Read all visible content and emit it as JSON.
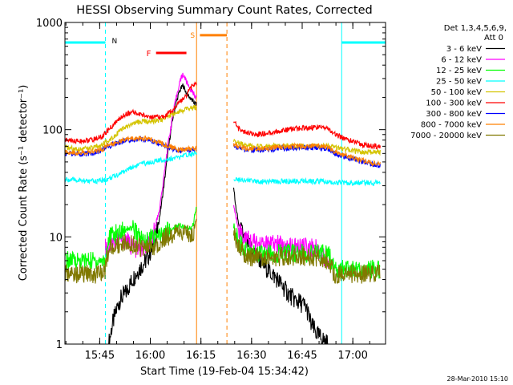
{
  "chart_data": {
    "type": "line",
    "title": "HESSI Observing Summary Count Rates, Corrected",
    "xlabel": "Start Time (19-Feb-04 15:34:42)",
    "ylabel": "Corrected Count Rate (s⁻¹ detector⁻¹)",
    "footer_timestamp": "28-Mar-2010 15:10",
    "yscale": "log",
    "ylim": [
      1,
      1000
    ],
    "y_ticks": [
      1,
      10,
      100,
      1000
    ],
    "y_tick_labels": [
      "1",
      "10",
      "100",
      "1000"
    ],
    "x_unit": "minutes since 15:34:42",
    "xlim": [
      0,
      95
    ],
    "x_ticks": [
      10.3,
      25.3,
      40.3,
      55.3,
      70.3,
      85.3
    ],
    "x_tick_labels": [
      "15:45",
      "16:00",
      "16:15",
      "16:30",
      "16:45",
      "17:00"
    ],
    "legend": {
      "position": "top-right",
      "header": [
        "Det 1,3,4,5,6,9,",
        "Att 0"
      ]
    },
    "colors": {
      "3 - 6 keV": "#000000",
      "6 - 12 keV": "#ff00ff",
      "12 - 25 keV": "#00ff00",
      "25 - 50 keV": "#00ffff",
      "50 - 100 keV": "#d4c400",
      "100 - 300 keV": "#ff0000",
      "300 - 800 keV": "#0000ff",
      "800 - 7000 keV": "#ff8000",
      "7000 - 20000 keV": "#807800"
    },
    "series": [
      {
        "name": "3 - 6 keV",
        "color": "#000000",
        "segments": [
          {
            "x": [
              13.0,
              14.0,
              16.0,
              18.0,
              20.0,
              22.0,
              24.0,
              26.0,
              27.0,
              28.0,
              29.0,
              30.0,
              31.0,
              32.0,
              33.0,
              34.0,
              35.0,
              36.0,
              37.5,
              39.0
            ],
            "y": [
              1.0,
              1.5,
              2.5,
              3.0,
              4.0,
              5.0,
              6.0,
              8.0,
              10.0,
              15.0,
              25.0,
              45.0,
              80.0,
              130.0,
              180.0,
              230.0,
              260.0,
              220.0,
              190.0,
              170.0
            ]
          },
          {
            "x": [
              50.0,
              50.5,
              51.5,
              53.0,
              55.0,
              57.0,
              60.0,
              63.0,
              66.0,
              68.0,
              70.0,
              71.5,
              73.0,
              75.0,
              78.0
            ],
            "y": [
              30.0,
              20.0,
              13.0,
              10.0,
              8.0,
              6.5,
              5.0,
              4.0,
              3.0,
              2.6,
              2.4,
              2.2,
              1.5,
              1.2,
              1.0
            ]
          }
        ]
      },
      {
        "name": "6 - 12 keV",
        "color": "#ff00ff",
        "segments": [
          {
            "x": [
              12.0,
              13.0,
              14.0,
              16.0,
              18.0,
              20.0,
              22.0,
              24.0,
              26.0,
              28.0,
              29.0,
              30.0,
              31.0,
              32.0,
              33.0,
              34.0,
              35.0,
              36.0,
              37.5,
              39.0
            ],
            "y": [
              8.0,
              8.0,
              9.0,
              9.5,
              9.5,
              8.0,
              7.5,
              8.0,
              10.0,
              18.0,
              30.0,
              55.0,
              90.0,
              140.0,
              200.0,
              280.0,
              330.0,
              280.0,
              230.0,
              200.0
            ]
          },
          {
            "x": [
              50.0,
              50.5,
              51.5,
              53.0,
              55.0,
              58.0,
              60.0,
              63.0,
              66.0,
              70.0,
              74.0,
              76.0,
              78.0
            ],
            "y": [
              20.0,
              16.0,
              12.0,
              10.0,
              9.0,
              8.5,
              8.5,
              8.5,
              8.0,
              8.0,
              8.0,
              7.0,
              6.0
            ]
          }
        ]
      },
      {
        "name": "12 - 25 keV",
        "color": "#00ff00",
        "segments": [
          {
            "x": [
              0.0,
              4.0,
              8.0,
              11.0,
              12.0,
              13.0,
              16.0,
              18.0,
              20.0,
              22.0,
              24.0,
              26.0,
              28.0,
              30.0,
              32.0,
              34.0,
              36.0,
              37.0,
              38.0,
              39.0
            ],
            "y": [
              6.0,
              6.0,
              6.0,
              6.0,
              6.0,
              10.0,
              11.0,
              12.0,
              12.0,
              10.0,
              9.0,
              10.0,
              10.0,
              11.0,
              12.0,
              13.0,
              12.0,
              12.0,
              13.0,
              20.0
            ]
          },
          {
            "x": [
              50.0,
              51.0,
              53.0,
              55.0,
              58.0,
              62.0,
              66.0,
              70.0,
              74.0,
              76.0,
              78.0,
              80.0,
              82.0,
              85.0,
              88.0,
              90.0,
              92.0,
              93.5
            ],
            "y": [
              12.0,
              10.0,
              8.0,
              7.0,
              7.0,
              7.0,
              7.0,
              7.0,
              7.0,
              7.0,
              7.0,
              5.0,
              5.0,
              5.0,
              5.0,
              5.0,
              5.0,
              5.0
            ]
          }
        ]
      },
      {
        "name": "25 - 50 keV",
        "color": "#00ffff",
        "segments": [
          {
            "x": [
              0.0,
              3.0,
              6.0,
              9.0,
              12.0,
              14.0,
              17.0,
              20.0,
              23.0,
              26.0,
              29.0,
              32.0,
              34.0,
              36.0,
              38.0,
              39.0
            ],
            "y": [
              34.0,
              34.0,
              33.0,
              33.0,
              34.0,
              36.0,
              40.0,
              45.0,
              48.0,
              50.0,
              52.0,
              54.0,
              55.0,
              58.0,
              60.0,
              62.0
            ]
          },
          {
            "x": [
              50.0,
              53.0,
              56.0,
              60.0,
              64.0,
              68.0,
              72.0,
              76.0,
              80.0,
              84.0,
              88.0,
              92.0,
              93.5
            ],
            "y": [
              35.0,
              34.0,
              33.0,
              33.0,
              33.0,
              33.0,
              33.0,
              33.0,
              32.0,
              32.0,
              32.0,
              32.0,
              32.0
            ]
          }
        ]
      },
      {
        "name": "50 - 100 keV",
        "color": "#d4c400",
        "segments": [
          {
            "x": [
              0.0,
              4.0,
              8.0,
              11.0,
              13.0,
              16.0,
              18.0,
              20.0,
              22.0,
              25.0,
              28.0,
              30.0,
              32.0,
              34.0,
              36.0,
              38.0,
              39.0
            ],
            "y": [
              68.0,
              66.0,
              67.0,
              72.0,
              80.0,
              95.0,
              105.0,
              112.0,
              118.0,
              120.0,
              122.0,
              130.0,
              140.0,
              150.0,
              155.0,
              160.0,
              160.0
            ]
          },
          {
            "x": [
              50.0,
              53.0,
              56.0,
              60.0,
              64.0,
              68.0,
              72.0,
              76.0,
              78.0,
              80.0,
              84.0,
              88.0,
              92.0,
              93.5
            ],
            "y": [
              78.0,
              72.0,
              70.0,
              70.0,
              70.0,
              70.0,
              70.0,
              70.0,
              70.0,
              68.0,
              65.0,
              62.0,
              62.0,
              62.0
            ]
          }
        ]
      },
      {
        "name": "100 - 300 keV",
        "color": "#ff0000",
        "segments": [
          {
            "x": [
              0.0,
              4.0,
              8.0,
              11.0,
              13.0,
              16.0,
              18.0,
              20.0,
              22.0,
              24.0,
              26.0,
              28.0,
              30.0,
              32.0,
              34.0,
              36.0,
              37.0,
              38.0,
              39.0
            ],
            "y": [
              80.0,
              78.0,
              80.0,
              86.0,
              100.0,
              125.0,
              140.0,
              145.0,
              140.0,
              135.0,
              130.0,
              130.0,
              135.0,
              155.0,
              180.0,
              210.0,
              240.0,
              260.0,
              270.0
            ]
          },
          {
            "x": [
              50.0,
              51.0,
              53.0,
              56.0,
              60.0,
              64.0,
              68.0,
              72.0,
              76.0,
              78.0,
              80.0,
              84.0,
              88.0,
              92.0,
              93.5
            ],
            "y": [
              125.0,
              105.0,
              95.0,
              90.0,
              92.0,
              98.0,
              102.0,
              104.0,
              106.0,
              102.0,
              90.0,
              80.0,
              72.0,
              70.0,
              70.0
            ]
          }
        ]
      },
      {
        "name": "300 - 800 keV",
        "color": "#0000ff",
        "segments": [
          {
            "x": [
              0.0,
              4.0,
              8.0,
              11.0,
              13.0,
              16.0,
              19.0,
              22.0,
              25.0,
              28.0,
              31.0,
              34.0,
              36.0,
              38.0,
              39.0
            ],
            "y": [
              60.0,
              59.0,
              60.0,
              64.0,
              70.0,
              76.0,
              80.0,
              82.0,
              80.0,
              74.0,
              68.0,
              63.0,
              64.0,
              65.0,
              65.0
            ]
          },
          {
            "x": [
              50.0,
              53.0,
              56.0,
              60.0,
              64.0,
              68.0,
              72.0,
              76.0,
              78.0,
              80.0,
              84.0,
              88.0,
              92.0,
              93.5
            ],
            "y": [
              70.0,
              66.0,
              64.0,
              65.0,
              67.0,
              68.0,
              68.0,
              68.0,
              66.0,
              60.0,
              55.0,
              50.0,
              47.0,
              46.0
            ]
          }
        ]
      },
      {
        "name": "800 - 7000 keV",
        "color": "#ff8000",
        "segments": [
          {
            "x": [
              0.0,
              4.0,
              8.0,
              11.0,
              13.0,
              16.0,
              19.0,
              22.0,
              25.0,
              28.0,
              31.0,
              34.0,
              36.0,
              38.0,
              39.0
            ],
            "y": [
              62.0,
              61.0,
              62.0,
              66.0,
              72.0,
              78.0,
              82.0,
              84.0,
              82.0,
              76.0,
              70.0,
              65.0,
              66.0,
              67.0,
              67.0
            ]
          },
          {
            "x": [
              50.0,
              53.0,
              56.0,
              60.0,
              64.0,
              68.0,
              72.0,
              76.0,
              78.0,
              80.0,
              84.0,
              88.0,
              92.0,
              93.5
            ],
            "y": [
              72.0,
              68.0,
              66.0,
              67.0,
              69.0,
              70.0,
              70.0,
              70.0,
              68.0,
              62.0,
              56.0,
              52.0,
              48.0,
              47.0
            ]
          }
        ]
      },
      {
        "name": "7000 - 20000 keV",
        "color": "#807800",
        "segments": [
          {
            "x": [
              0.0,
              4.0,
              8.0,
              11.0,
              12.0,
              13.0,
              16.0,
              18.0,
              20.0,
              22.0,
              24.0,
              26.0,
              28.0,
              30.0,
              32.0,
              34.0,
              36.0,
              38.0,
              39.0
            ],
            "y": [
              4.5,
              4.5,
              4.5,
              4.5,
              5.0,
              8.0,
              8.5,
              9.0,
              8.5,
              8.0,
              8.0,
              8.0,
              9.0,
              10.0,
              10.5,
              11.0,
              11.0,
              10.5,
              15.0
            ]
          },
          {
            "x": [
              50.0,
              51.0,
              53.0,
              55.0,
              58.0,
              62.0,
              66.0,
              70.0,
              74.0,
              76.0,
              78.0,
              80.0,
              84.0,
              88.0,
              92.0,
              93.5
            ],
            "y": [
              11.0,
              9.0,
              7.0,
              6.5,
              6.5,
              6.5,
              6.5,
              6.5,
              6.5,
              6.5,
              6.0,
              4.5,
              4.5,
              4.5,
              4.5,
              4.5
            ]
          }
        ]
      }
    ],
    "annotations": {
      "night_bars": [
        {
          "label": "N",
          "color": "#00ffff",
          "x_start": 0.0,
          "x_end": 12.0,
          "y": 650
        },
        {
          "label": "",
          "color": "#00ffff",
          "x_start": 82.0,
          "x_end": 95.0,
          "y": 650
        }
      ],
      "flare_bar": {
        "label": "F",
        "color": "#ff0000",
        "x_start": 27.0,
        "x_end": 36.0,
        "y": 520
      },
      "saa_bar": {
        "label": "S",
        "color": "#ff8000",
        "x_start": 40.0,
        "x_end": 48.0,
        "y": 760
      },
      "cyan_dashed_lines": [
        12.0,
        95.0
      ],
      "cyan_solid_lines": [
        0.0,
        82.0
      ],
      "orange_solid_line": 39.0,
      "orange_dashed_line": 48.0
    }
  }
}
